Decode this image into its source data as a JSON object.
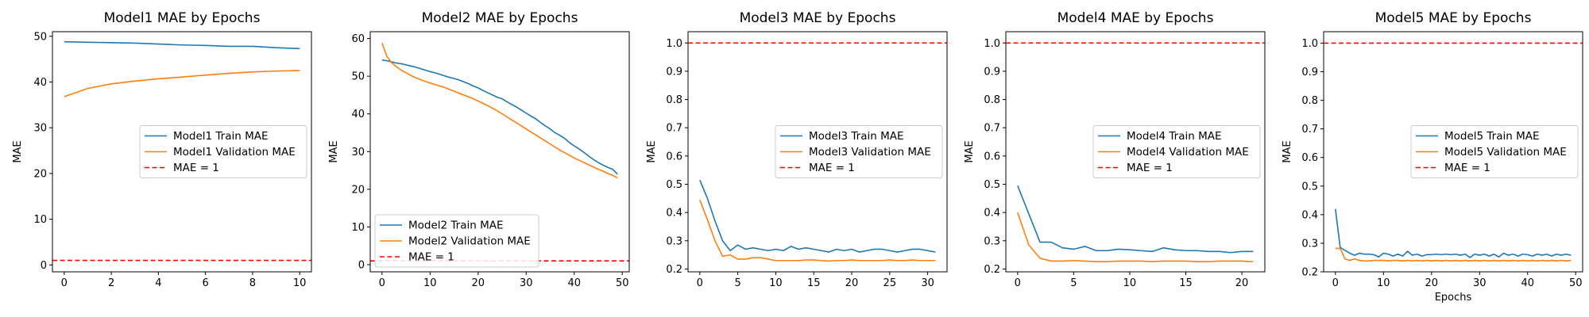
{
  "chart_data": [
    {
      "type": "line",
      "title": "Model1 MAE by Epochs",
      "xlabel": "",
      "ylabel": "MAE",
      "xlim": [
        -0.5,
        10.5
      ],
      "ylim": [
        -1.5,
        51.0
      ],
      "xticks": [
        0,
        2,
        4,
        6,
        8,
        10
      ],
      "yticks": [
        0,
        10,
        20,
        30,
        40,
        50
      ],
      "legend_position": "center-right",
      "series": [
        {
          "name": "Model1 Train MAE",
          "color": "#1f77b4",
          "x": [
            0,
            1,
            2,
            3,
            4,
            5,
            6,
            7,
            8,
            9,
            10
          ],
          "y": [
            48.8,
            48.7,
            48.6,
            48.5,
            48.3,
            48.1,
            48.0,
            47.8,
            47.8,
            47.5,
            47.3
          ]
        },
        {
          "name": "Model1 Validation MAE",
          "color": "#ff7f0e",
          "x": [
            0,
            1,
            2,
            3,
            4,
            5,
            6,
            7,
            8,
            9,
            10
          ],
          "y": [
            36.8,
            38.6,
            39.6,
            40.2,
            40.7,
            41.1,
            41.5,
            41.9,
            42.2,
            42.4,
            42.5
          ]
        }
      ],
      "hline": {
        "name": "MAE = 1",
        "y": 1,
        "color": "#ff0000"
      }
    },
    {
      "type": "line",
      "title": "Model2 MAE by Epochs",
      "xlabel": "",
      "ylabel": "MAE",
      "xlim": [
        -2.45,
        51.45
      ],
      "ylim": [
        -1.9,
        61.8
      ],
      "xticks": [
        0,
        10,
        20,
        30,
        40,
        50
      ],
      "yticks": [
        0,
        10,
        20,
        30,
        40,
        50,
        60
      ],
      "legend_position": "lower-left",
      "series": [
        {
          "name": "Model2 Train MAE",
          "color": "#1f77b4",
          "x": [
            0,
            1,
            2,
            3,
            4,
            5,
            6,
            7,
            8,
            9,
            10,
            11,
            12,
            13,
            14,
            15,
            16,
            17,
            18,
            19,
            20,
            21,
            22,
            23,
            24,
            25,
            26,
            27,
            28,
            29,
            30,
            31,
            32,
            33,
            34,
            35,
            36,
            37,
            38,
            39,
            40,
            41,
            42,
            43,
            44,
            45,
            46,
            47,
            48,
            49
          ],
          "y": [
            54.3,
            54.1,
            53.8,
            53.5,
            53.3,
            53.0,
            52.7,
            52.4,
            52.0,
            51.6,
            51.2,
            50.9,
            50.5,
            50.1,
            49.7,
            49.4,
            49.0,
            48.5,
            48.0,
            47.4,
            46.9,
            46.2,
            45.6,
            45.0,
            44.4,
            44.0,
            43.2,
            42.5,
            41.8,
            41.0,
            40.2,
            39.4,
            38.7,
            37.7,
            36.8,
            36.0,
            35.0,
            34.3,
            33.5,
            32.4,
            31.5,
            30.7,
            29.8,
            28.8,
            27.9,
            27.1,
            26.4,
            25.8,
            25.3,
            24.0
          ]
        },
        {
          "name": "Model2 Validation MAE",
          "color": "#ff7f0e",
          "x": [
            0,
            1,
            2,
            3,
            4,
            5,
            6,
            7,
            8,
            9,
            10,
            11,
            12,
            13,
            14,
            15,
            16,
            17,
            18,
            19,
            20,
            21,
            22,
            23,
            24,
            25,
            26,
            27,
            28,
            29,
            30,
            31,
            32,
            33,
            34,
            35,
            36,
            37,
            38,
            39,
            40,
            41,
            42,
            43,
            44,
            45,
            46,
            47,
            48,
            49
          ],
          "y": [
            58.8,
            55.3,
            53.6,
            52.5,
            51.6,
            50.9,
            50.2,
            49.6,
            49.1,
            48.6,
            48.2,
            47.8,
            47.4,
            47.0,
            46.5,
            46.0,
            45.5,
            45.0,
            44.5,
            44.0,
            43.4,
            42.8,
            42.2,
            41.5,
            40.8,
            40.0,
            39.2,
            38.4,
            37.6,
            36.8,
            36.0,
            35.2,
            34.4,
            33.6,
            32.8,
            32.0,
            31.2,
            30.4,
            29.7,
            29.0,
            28.3,
            27.7,
            27.1,
            26.5,
            25.9,
            25.3,
            24.8,
            24.2,
            23.7,
            23.0
          ]
        }
      ],
      "hline": {
        "name": "MAE = 1",
        "y": 1,
        "color": "#ff0000"
      }
    },
    {
      "type": "line",
      "title": "Model3 MAE by Epochs",
      "xlabel": "",
      "ylabel": "MAE",
      "xlim": [
        -1.55,
        32.55
      ],
      "ylim": [
        0.19,
        1.04
      ],
      "xticks": [
        0,
        5,
        10,
        15,
        20,
        25,
        30
      ],
      "yticks": [
        0.2,
        0.3,
        0.4,
        0.5,
        0.6,
        0.7,
        0.8,
        0.9,
        1.0
      ],
      "ytick_labels": [
        "0.2",
        "0.3",
        "0.4",
        "0.5",
        "0.6",
        "0.7",
        "0.8",
        "0.9",
        "1.0"
      ],
      "legend_position": "center-right",
      "series": [
        {
          "name": "Model3 Train MAE",
          "color": "#1f77b4",
          "x": [
            0,
            1,
            2,
            3,
            4,
            5,
            6,
            7,
            8,
            9,
            10,
            11,
            12,
            13,
            14,
            15,
            16,
            17,
            18,
            19,
            20,
            21,
            22,
            23,
            24,
            25,
            26,
            27,
            28,
            29,
            30,
            31
          ],
          "y": [
            0.515,
            0.45,
            0.37,
            0.3,
            0.265,
            0.285,
            0.27,
            0.275,
            0.27,
            0.265,
            0.27,
            0.265,
            0.28,
            0.27,
            0.275,
            0.27,
            0.265,
            0.26,
            0.27,
            0.265,
            0.27,
            0.26,
            0.265,
            0.27,
            0.27,
            0.265,
            0.26,
            0.265,
            0.27,
            0.27,
            0.265,
            0.26
          ]
        },
        {
          "name": "Model3 Validation MAE",
          "color": "#ff7f0e",
          "x": [
            0,
            1,
            2,
            3,
            4,
            5,
            6,
            7,
            8,
            9,
            10,
            11,
            12,
            13,
            14,
            15,
            16,
            17,
            18,
            19,
            20,
            21,
            22,
            23,
            24,
            25,
            26,
            27,
            28,
            29,
            30,
            31
          ],
          "y": [
            0.445,
            0.375,
            0.3,
            0.245,
            0.25,
            0.235,
            0.235,
            0.24,
            0.24,
            0.235,
            0.23,
            0.23,
            0.23,
            0.23,
            0.232,
            0.232,
            0.23,
            0.228,
            0.23,
            0.23,
            0.232,
            0.23,
            0.23,
            0.23,
            0.23,
            0.232,
            0.23,
            0.23,
            0.232,
            0.23,
            0.23,
            0.23
          ]
        }
      ],
      "hline": {
        "name": "MAE = 1",
        "y": 1,
        "color": "#ff0000"
      }
    },
    {
      "type": "line",
      "title": "Model4 MAE by Epochs",
      "xlabel": "",
      "ylabel": "MAE",
      "xlim": [
        -1.05,
        22.05
      ],
      "ylim": [
        0.19,
        1.04
      ],
      "xticks": [
        0,
        5,
        10,
        15,
        20
      ],
      "yticks": [
        0.2,
        0.3,
        0.4,
        0.5,
        0.6,
        0.7,
        0.8,
        0.9,
        1.0
      ],
      "ytick_labels": [
        "0.2",
        "0.3",
        "0.4",
        "0.5",
        "0.6",
        "0.7",
        "0.8",
        "0.9",
        "1.0"
      ],
      "legend_position": "center-right",
      "series": [
        {
          "name": "Model4 Train MAE",
          "color": "#1f77b4",
          "x": [
            0,
            1,
            2,
            3,
            4,
            5,
            6,
            7,
            8,
            9,
            10,
            11,
            12,
            13,
            14,
            15,
            16,
            17,
            18,
            19,
            20,
            21
          ],
          "y": [
            0.495,
            0.395,
            0.295,
            0.295,
            0.275,
            0.27,
            0.28,
            0.265,
            0.265,
            0.27,
            0.268,
            0.265,
            0.262,
            0.275,
            0.268,
            0.265,
            0.265,
            0.262,
            0.262,
            0.258,
            0.262,
            0.262
          ]
        },
        {
          "name": "Model4 Validation MAE",
          "color": "#ff7f0e",
          "x": [
            0,
            1,
            2,
            3,
            4,
            5,
            6,
            7,
            8,
            9,
            10,
            11,
            12,
            13,
            14,
            15,
            16,
            17,
            18,
            19,
            20,
            21
          ],
          "y": [
            0.4,
            0.285,
            0.238,
            0.228,
            0.228,
            0.23,
            0.228,
            0.226,
            0.226,
            0.228,
            0.228,
            0.228,
            0.226,
            0.228,
            0.228,
            0.228,
            0.226,
            0.226,
            0.228,
            0.228,
            0.228,
            0.226
          ]
        }
      ],
      "hline": {
        "name": "MAE = 1",
        "y": 1,
        "color": "#ff0000"
      }
    },
    {
      "type": "line",
      "title": "Model5 MAE by Epochs",
      "xlabel": "Epochs",
      "ylabel": "MAE",
      "xlim": [
        -2.45,
        51.45
      ],
      "ylim": [
        0.2,
        1.04
      ],
      "xticks": [
        0,
        10,
        20,
        30,
        40,
        50
      ],
      "yticks": [
        0.2,
        0.3,
        0.4,
        0.5,
        0.6,
        0.7,
        0.8,
        0.9,
        1.0
      ],
      "ytick_labels": [
        "0.2",
        "0.3",
        "0.4",
        "0.5",
        "0.6",
        "0.7",
        "0.8",
        "0.9",
        "1.0"
      ],
      "legend_position": "center-right",
      "series": [
        {
          "name": "Model5 Train MAE",
          "color": "#1f77b4",
          "x": [
            0,
            1,
            2,
            3,
            4,
            5,
            6,
            7,
            8,
            9,
            10,
            11,
            12,
            13,
            14,
            15,
            16,
            17,
            18,
            19,
            20,
            21,
            22,
            23,
            24,
            25,
            26,
            27,
            28,
            29,
            30,
            31,
            32,
            33,
            34,
            35,
            36,
            37,
            38,
            39,
            40,
            41,
            42,
            43,
            44,
            45,
            46,
            47,
            48,
            49
          ],
          "y": [
            0.42,
            0.285,
            0.275,
            0.265,
            0.258,
            0.265,
            0.262,
            0.262,
            0.26,
            0.252,
            0.265,
            0.262,
            0.255,
            0.262,
            0.255,
            0.272,
            0.258,
            0.262,
            0.255,
            0.26,
            0.26,
            0.262,
            0.26,
            0.262,
            0.26,
            0.262,
            0.258,
            0.262,
            0.25,
            0.262,
            0.258,
            0.262,
            0.255,
            0.262,
            0.252,
            0.265,
            0.258,
            0.262,
            0.255,
            0.262,
            0.26,
            0.255,
            0.262,
            0.258,
            0.262,
            0.255,
            0.262,
            0.258,
            0.262,
            0.258
          ]
        },
        {
          "name": "Model5 Validation MAE",
          "color": "#ff7f0e",
          "x": [
            0,
            1,
            2,
            3,
            4,
            5,
            6,
            7,
            8,
            9,
            10,
            11,
            12,
            13,
            14,
            15,
            16,
            17,
            18,
            19,
            20,
            21,
            22,
            23,
            24,
            25,
            26,
            27,
            28,
            29,
            30,
            31,
            32,
            33,
            34,
            35,
            36,
            37,
            38,
            39,
            40,
            41,
            42,
            43,
            44,
            45,
            46,
            47,
            48,
            49
          ],
          "y": [
            0.282,
            0.282,
            0.245,
            0.24,
            0.245,
            0.24,
            0.238,
            0.238,
            0.24,
            0.24,
            0.24,
            0.238,
            0.24,
            0.24,
            0.238,
            0.24,
            0.238,
            0.24,
            0.238,
            0.24,
            0.238,
            0.24,
            0.238,
            0.24,
            0.238,
            0.24,
            0.238,
            0.24,
            0.238,
            0.24,
            0.238,
            0.24,
            0.238,
            0.24,
            0.238,
            0.24,
            0.238,
            0.24,
            0.238,
            0.24,
            0.238,
            0.24,
            0.238,
            0.24,
            0.238,
            0.24,
            0.238,
            0.24,
            0.238,
            0.24
          ]
        }
      ],
      "hline": {
        "name": "MAE = 1",
        "y": 1,
        "color": "#ff0000"
      }
    }
  ]
}
